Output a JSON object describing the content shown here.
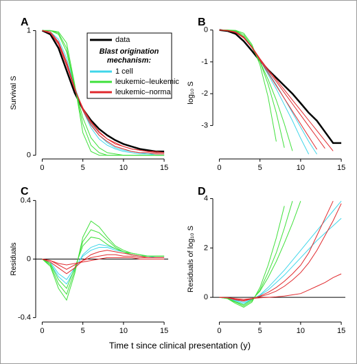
{
  "chart_data": [
    {
      "type": "line",
      "panel": "A",
      "ylabel": "Survival S",
      "x": [
        0,
        1,
        2,
        3,
        4,
        5,
        6,
        7,
        8,
        9,
        10,
        11,
        12,
        13,
        14,
        15
      ],
      "xlim": [
        -0.8,
        15.5
      ],
      "xticks": [
        0,
        5,
        10,
        15
      ],
      "ylim": [
        -0.03,
        1.03
      ],
      "yticks": [
        0,
        1
      ],
      "legend": "top-right",
      "legend_title": [
        "Blast origination",
        "mechanism:"
      ],
      "series": [
        {
          "name": "data",
          "color": "#000000",
          "values": [
            1,
            0.97,
            0.86,
            0.68,
            0.5,
            0.37,
            0.28,
            0.21,
            0.16,
            0.12,
            0.09,
            0.07,
            0.05,
            0.04,
            0.03,
            0.03
          ]
        },
        {
          "name": "1 cell",
          "color": "#3fd6ea",
          "curves": [
            [
              1,
              0.99,
              0.93,
              0.78,
              0.55,
              0.36,
              0.22,
              0.13,
              0.08,
              0.05,
              0.03,
              0.02,
              0.01,
              0.01,
              0,
              0
            ],
            [
              1,
              0.99,
              0.91,
              0.75,
              0.54,
              0.37,
              0.25,
              0.16,
              0.1,
              0.06,
              0.04,
              0.03,
              0.02,
              0.01,
              0.01,
              0.01
            ]
          ]
        },
        {
          "name": "leukemic–leukemic",
          "color": "#3ee03a",
          "curves": [
            [
              1,
              1,
              0.98,
              0.86,
              0.55,
              0.25,
              0.08,
              0.02,
              0,
              0,
              0,
              0,
              0,
              0,
              0,
              0
            ],
            [
              1,
              1,
              0.97,
              0.83,
              0.55,
              0.3,
              0.14,
              0.06,
              0.02,
              0.01,
              0,
              0,
              0,
              0,
              0,
              0
            ],
            [
              1,
              1,
              0.99,
              0.9,
              0.57,
              0.18,
              0.03,
              0,
              0,
              0,
              0,
              0,
              0,
              0,
              0,
              0
            ]
          ]
        },
        {
          "name": "leukemic–normal",
          "color": "#e0282c",
          "curves": [
            [
              1,
              0.98,
              0.9,
              0.73,
              0.53,
              0.37,
              0.26,
              0.18,
              0.13,
              0.09,
              0.07,
              0.05,
              0.04,
              0.03,
              0.02,
              0.02
            ],
            [
              1,
              0.98,
              0.89,
              0.72,
              0.53,
              0.38,
              0.27,
              0.19,
              0.13,
              0.1,
              0.07,
              0.05,
              0.04,
              0.03,
              0.03,
              0.02
            ],
            [
              1,
              0.99,
              0.91,
              0.75,
              0.54,
              0.36,
              0.24,
              0.16,
              0.11,
              0.07,
              0.05,
              0.03,
              0.02,
              0.02,
              0.01,
              0.01
            ]
          ]
        }
      ]
    },
    {
      "type": "line",
      "panel": "B",
      "ylabel": "log₁₀ S",
      "x": [
        0,
        1,
        2,
        3,
        4,
        5,
        6,
        7,
        8,
        9,
        10,
        11,
        12,
        13,
        14,
        15
      ],
      "xlim": [
        -0.8,
        15.5
      ],
      "xticks": [
        0,
        5,
        10,
        15
      ],
      "ylim": [
        -4.05,
        0.1
      ],
      "yticks": [
        0,
        -1,
        -2,
        -3
      ],
      "series": [
        {
          "color": "#000000",
          "values": [
            0,
            -0.03,
            -0.12,
            -0.35,
            -0.65,
            -0.97,
            -1.25,
            -1.5,
            -1.75,
            -2.0,
            -2.3,
            -2.6,
            -2.85,
            -3.2,
            -3.55,
            -3.55
          ]
        },
        {
          "color": "#3fd6ea",
          "curves": [
            [
              0,
              -0.01,
              -0.06,
              -0.22,
              -0.55,
              -0.95,
              -1.4,
              -1.85,
              -2.35,
              -2.85,
              -3.4,
              -3.9,
              null,
              null,
              null,
              null
            ],
            [
              0,
              -0.01,
              -0.05,
              -0.2,
              -0.52,
              -0.92,
              -1.32,
              -1.72,
              -2.15,
              -2.6,
              -3.05,
              -3.5,
              -3.9,
              null,
              null,
              null
            ]
          ]
        },
        {
          "color": "#3ee03a",
          "curves": [
            [
              0,
              0,
              -0.01,
              -0.1,
              -0.45,
              -1.1,
              -2.1,
              -3.5,
              null,
              null,
              null,
              null,
              null,
              null,
              null,
              null
            ],
            [
              0,
              0,
              -0.02,
              -0.15,
              -0.5,
              -1.0,
              -1.7,
              -2.6,
              -3.7,
              null,
              null,
              null,
              null,
              null,
              null,
              null
            ],
            [
              0,
              -0.01,
              -0.03,
              -0.2,
              -0.55,
              -1.0,
              -1.55,
              -2.2,
              -2.95,
              -3.8,
              null,
              null,
              null,
              null,
              null,
              null
            ]
          ]
        },
        {
          "color": "#e0282c",
          "curves": [
            [
              0,
              -0.02,
              -0.08,
              -0.25,
              -0.55,
              -0.92,
              -1.28,
              -1.62,
              -1.97,
              -2.32,
              -2.67,
              -3.02,
              -3.37,
              -3.72,
              null,
              null
            ],
            [
              0,
              -0.02,
              -0.08,
              -0.24,
              -0.53,
              -0.9,
              -1.24,
              -1.56,
              -1.88,
              -2.2,
              -2.52,
              -2.84,
              -3.16,
              -3.48,
              -3.8,
              null
            ],
            [
              0,
              -0.01,
              -0.06,
              -0.22,
              -0.54,
              -0.95,
              -1.35,
              -1.75,
              -2.15,
              -2.55,
              -2.95,
              -3.35,
              -3.75,
              null,
              null,
              null
            ]
          ]
        }
      ]
    },
    {
      "type": "line",
      "panel": "C",
      "ylabel": "Residuals",
      "x": [
        0,
        1,
        2,
        3,
        4,
        5,
        6,
        7,
        8,
        9,
        10,
        11,
        12,
        13,
        14,
        15
      ],
      "xlim": [
        -0.8,
        15.5
      ],
      "xticks": [
        0,
        5,
        10,
        15
      ],
      "ylim": [
        -0.43,
        0.43
      ],
      "yticks": [
        -0.4,
        0,
        0.4
      ],
      "zero_line": true,
      "series": [
        {
          "color": "#3fd6ea",
          "curves": [
            [
              0,
              -0.03,
              -0.12,
              -0.17,
              -0.07,
              0.03,
              0.08,
              0.1,
              0.09,
              0.07,
              0.05,
              0.03,
              0.02,
              0.02,
              0.01,
              0.01
            ],
            [
              0,
              -0.02,
              -0.1,
              -0.14,
              -0.06,
              0.02,
              0.06,
              0.08,
              0.08,
              0.06,
              0.05,
              0.03,
              0.02,
              0.02,
              0.01,
              0.01
            ]
          ]
        },
        {
          "color": "#3ee03a",
          "curves": [
            [
              0,
              -0.05,
              -0.2,
              -0.28,
              -0.1,
              0.15,
              0.26,
              0.22,
              0.15,
              0.09,
              0.06,
              0.04,
              0.03,
              0.02,
              0.02,
              0.02
            ],
            [
              0,
              -0.04,
              -0.17,
              -0.24,
              -0.08,
              0.12,
              0.2,
              0.18,
              0.13,
              0.08,
              0.05,
              0.04,
              0.03,
              0.02,
              0.02,
              0.02
            ],
            [
              0,
              -0.03,
              -0.14,
              -0.2,
              -0.06,
              0.09,
              0.15,
              0.14,
              0.1,
              0.07,
              0.05,
              0.03,
              0.02,
              0.02,
              0.02,
              0.02
            ]
          ]
        },
        {
          "color": "#e0282c",
          "curves": [
            [
              0,
              -0.02,
              -0.06,
              -0.1,
              -0.06,
              -0.01,
              0.03,
              0.05,
              0.06,
              0.05,
              0.04,
              0.03,
              0.02,
              0.01,
              0.01,
              0.01
            ],
            [
              0,
              -0.01,
              -0.04,
              -0.07,
              -0.04,
              -0.01,
              0.01,
              0.02,
              0.03,
              0.03,
              0.02,
              0.02,
              0.01,
              0.01,
              0.01,
              0.01
            ],
            [
              0,
              -0.01,
              -0.03,
              -0.04,
              -0.03,
              -0.02,
              -0.01,
              0,
              0.01,
              0.01,
              0.01,
              0.01,
              0,
              0,
              0,
              0
            ]
          ]
        }
      ]
    },
    {
      "type": "line",
      "panel": "D",
      "ylabel": "Residuals of log₁₀ S",
      "x": [
        0,
        1,
        2,
        3,
        4,
        5,
        6,
        7,
        8,
        9,
        10,
        11,
        12,
        13,
        14,
        15
      ],
      "xlim": [
        -0.8,
        15.5
      ],
      "xticks": [
        0,
        5,
        10,
        15
      ],
      "ylim": [
        -1,
        4.1
      ],
      "yticks": [
        0,
        2,
        4
      ],
      "zero_line": true,
      "series": [
        {
          "color": "#3fd6ea",
          "curves": [
            [
              0,
              -0.03,
              -0.15,
              -0.25,
              -0.1,
              0.1,
              0.4,
              0.75,
              1.1,
              1.5,
              1.9,
              2.3,
              2.7,
              3.1,
              3.5,
              3.9
            ],
            [
              0,
              -0.03,
              -0.12,
              -0.2,
              -0.08,
              0.08,
              0.3,
              0.6,
              0.9,
              1.25,
              1.6,
              1.95,
              2.3,
              2.6,
              2.9,
              3.2
            ]
          ]
        },
        {
          "color": "#3ee03a",
          "curves": [
            [
              0,
              -0.05,
              -0.25,
              -0.4,
              -0.2,
              0.4,
              1.3,
              2.4,
              3.7,
              null,
              null,
              null,
              null,
              null,
              null,
              null
            ],
            [
              0,
              -0.05,
              -0.2,
              -0.35,
              -0.15,
              0.3,
              1.0,
              1.8,
              2.8,
              3.9,
              null,
              null,
              null,
              null,
              null,
              null
            ],
            [
              0,
              -0.04,
              -0.18,
              -0.3,
              -0.1,
              0.25,
              0.8,
              1.45,
              2.2,
              3.0,
              3.9,
              null,
              null,
              null,
              null,
              null
            ]
          ]
        },
        {
          "color": "#e0282c",
          "curves": [
            [
              0,
              -0.02,
              -0.1,
              -0.15,
              -0.06,
              0.05,
              0.2,
              0.4,
              0.65,
              0.95,
              1.3,
              1.8,
              2.5,
              3.2,
              3.9,
              null
            ],
            [
              0,
              -0.02,
              -0.08,
              -0.12,
              -0.05,
              0.03,
              0.12,
              0.25,
              0.45,
              0.7,
              1.0,
              1.4,
              1.9,
              2.5,
              3.1,
              3.8
            ],
            [
              0,
              -0.01,
              -0.05,
              -0.08,
              -0.05,
              -0.02,
              0,
              0.02,
              0.05,
              0.1,
              0.15,
              0.3,
              0.45,
              0.6,
              0.8,
              0.95
            ]
          ]
        }
      ]
    }
  ],
  "xlabel": "Time t since clinical presentation (y)"
}
